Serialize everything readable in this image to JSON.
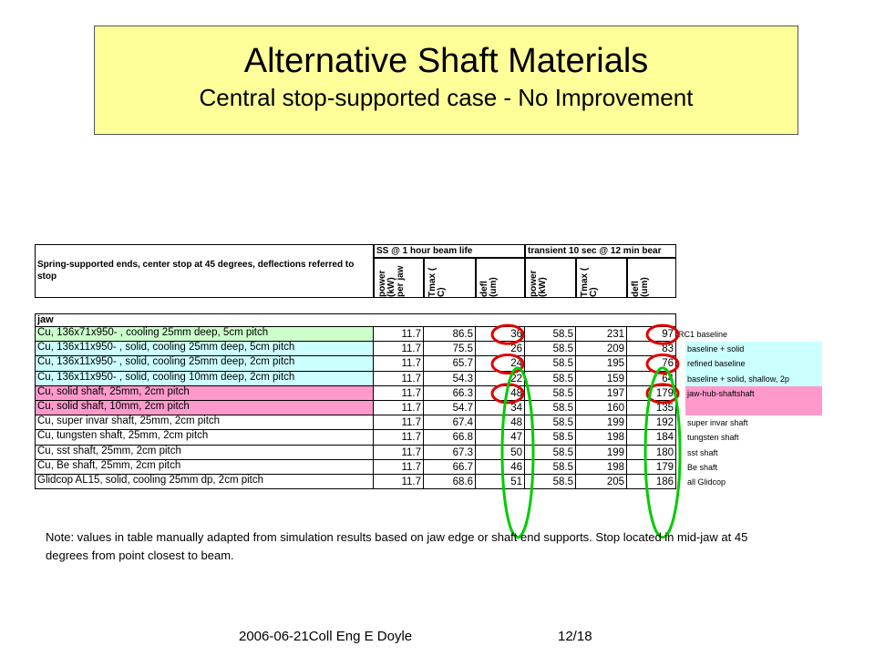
{
  "title": "Alternative Shaft Materials",
  "subtitle": "Central stop-supported case - No Improvement",
  "table": {
    "group_headers": [
      "SS @ 1 hour beam life",
      "transient 10 sec @ 12 min bear"
    ],
    "description": "Spring-supported ends, center stop at 45 degrees, deflections referred to stop",
    "column_headers": [
      "power\n(kW)\nper jaw",
      "Tmax (\nC)",
      "defl\n(um)",
      "power\n(kW)",
      "Tmax (\nC)",
      "defl\n(um)"
    ],
    "section_label": "jaw",
    "rows": [
      {
        "desc": "Cu, 136x71x950- , cooling 25mm deep, 5cm pitch",
        "v": [
          "11.7",
          "86.5",
          "36",
          "58.5",
          "231",
          "97"
        ],
        "note": "RC1 baseline",
        "bg": "#ccffcc",
        "note_bg": ""
      },
      {
        "desc": "Cu, 136x11x950- , solid, cooling 25mm deep, 5cm pitch",
        "v": [
          "11.7",
          "75.5",
          "26",
          "58.5",
          "209",
          "83"
        ],
        "note": "baseline + solid",
        "bg": "#ccffff",
        "note_bg": "#ccffff"
      },
      {
        "desc": "Cu, 136x11x950- , solid, cooling 25mm deep, 2cm pitch",
        "v": [
          "11.7",
          "65.7",
          "24",
          "58.5",
          "195",
          "76"
        ],
        "note": "refined baseline",
        "bg": "#ccffff",
        "note_bg": "#ccffff"
      },
      {
        "desc": "Cu, 136x11x950- , solid, cooling 10mm deep, 2cm pitch",
        "v": [
          "11.7",
          "54.3",
          "22",
          "58.5",
          "159",
          "64"
        ],
        "note": "baseline + solid, shallow, 2p",
        "bg": "#ccffff",
        "note_bg": "#ccffff"
      },
      {
        "desc": "Cu, solid shaft, 25mm, 2cm pitch",
        "v": [
          "11.7",
          "66.3",
          "48",
          "58.5",
          "197",
          "179"
        ],
        "note": "jaw-hub-shaftshaft",
        "bg": "#ff99cc",
        "note_bg": "#ff99cc"
      },
      {
        "desc": "Cu, solid shaft, 10mm, 2cm pitch",
        "v": [
          "11.7",
          "54.7",
          "34",
          "58.5",
          "160",
          "135"
        ],
        "note": "",
        "bg": "#ff99cc",
        "note_bg": "#ff99cc"
      },
      {
        "desc": "Cu, super invar shaft, 25mm, 2cm pitch",
        "v": [
          "11.7",
          "67.4",
          "48",
          "58.5",
          "199",
          "192"
        ],
        "note": "super invar shaft",
        "bg": "#ffffff",
        "note_bg": ""
      },
      {
        "desc": "Cu, tungsten shaft, 25mm, 2cm pitch",
        "v": [
          "11.7",
          "66.8",
          "47",
          "58.5",
          "198",
          "184"
        ],
        "note": "tungsten shaft",
        "bg": "#ffffff",
        "note_bg": ""
      },
      {
        "desc": "Cu, sst shaft, 25mm, 2cm pitch",
        "v": [
          "11.7",
          "67.3",
          "50",
          "58.5",
          "199",
          "180"
        ],
        "note": "sst shaft",
        "bg": "#ffffff",
        "note_bg": ""
      },
      {
        "desc": "Cu, Be shaft, 25mm, 2cm pitch",
        "v": [
          "11.7",
          "66.7",
          "46",
          "58.5",
          "198",
          "179"
        ],
        "note": "Be shaft",
        "bg": "#ffffff",
        "note_bg": ""
      },
      {
        "desc": "Glidcop AL15, solid, cooling 25mm dp, 2cm pitch",
        "v": [
          "11.7",
          "68.6",
          "51",
          "58.5",
          "205",
          "186"
        ],
        "note": "all Glidcop",
        "bg": "#ffffff",
        "note_bg": ""
      }
    ]
  },
  "highlights": {
    "red_color": "#e00000",
    "green_color": "#00cc00"
  },
  "note": "Note:  values in table manually adapted from simulation results based on jaw edge or shaft end supports.  Stop located in mid-jaw at 45 degrees from point closest to beam.",
  "footer": {
    "left": "2006-06-21Coll Eng E Doyle",
    "right": "12/18"
  }
}
